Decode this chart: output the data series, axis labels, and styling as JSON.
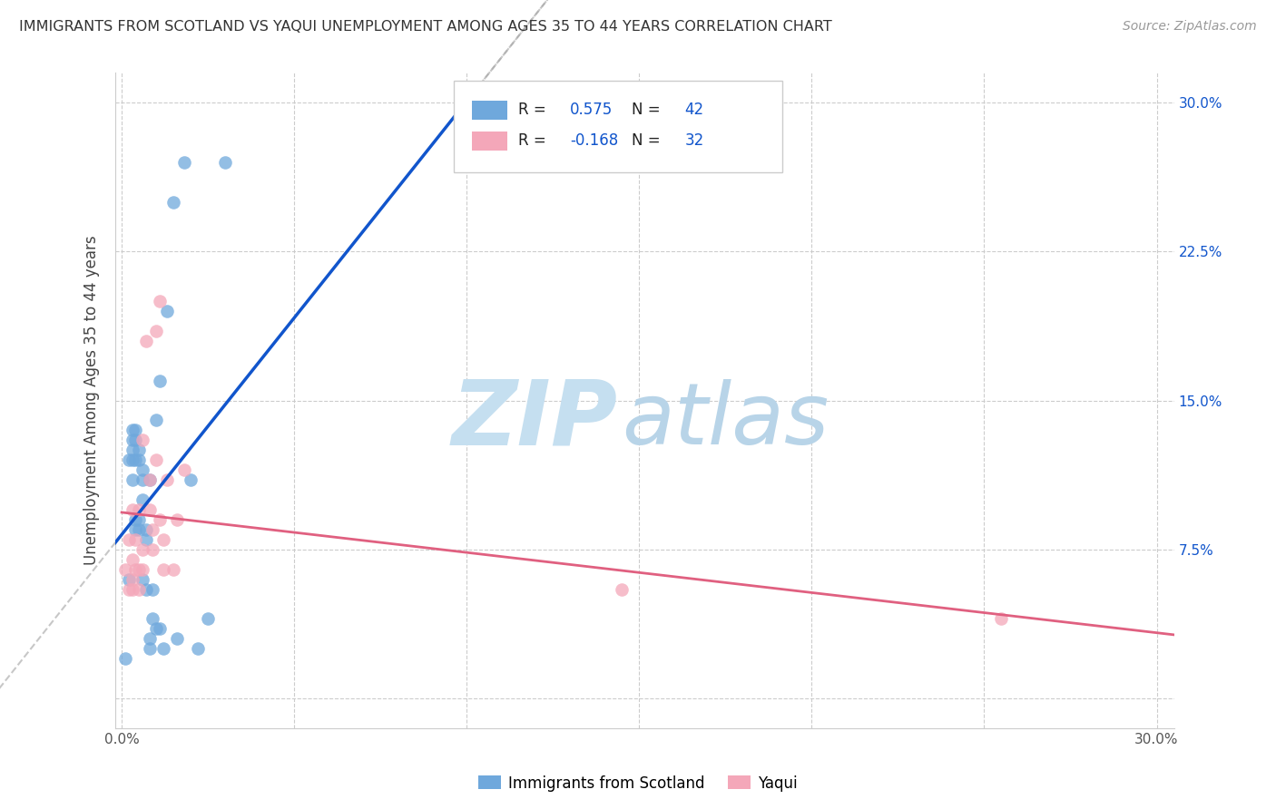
{
  "title": "IMMIGRANTS FROM SCOTLAND VS YAQUI UNEMPLOYMENT AMONG AGES 35 TO 44 YEARS CORRELATION CHART",
  "source": "Source: ZipAtlas.com",
  "ylabel": "Unemployment Among Ages 35 to 44 years",
  "xlim": [
    -0.002,
    0.305
  ],
  "ylim": [
    -0.015,
    0.315
  ],
  "yticks_right": [
    0.0,
    0.075,
    0.15,
    0.225,
    0.3
  ],
  "ytick_labels_right": [
    "",
    "7.5%",
    "15.0%",
    "22.5%",
    "30.0%"
  ],
  "xticks": [
    0.0,
    0.05,
    0.1,
    0.15,
    0.2,
    0.25,
    0.3
  ],
  "scotland_color": "#6fa8dc",
  "yaqui_color": "#f4a7b9",
  "trend_scotland_color": "#1155cc",
  "trend_yaqui_color": "#e06080",
  "watermark_color_zip": "#c5dff0",
  "watermark_color_atlas": "#b8d4e8",
  "scotland_x": [
    0.001,
    0.002,
    0.002,
    0.003,
    0.003,
    0.003,
    0.003,
    0.003,
    0.004,
    0.004,
    0.004,
    0.004,
    0.004,
    0.005,
    0.005,
    0.005,
    0.005,
    0.006,
    0.006,
    0.006,
    0.006,
    0.007,
    0.007,
    0.007,
    0.008,
    0.008,
    0.008,
    0.009,
    0.009,
    0.01,
    0.01,
    0.011,
    0.011,
    0.012,
    0.013,
    0.015,
    0.016,
    0.018,
    0.02,
    0.022,
    0.025,
    0.03
  ],
  "scotland_y": [
    0.02,
    0.06,
    0.12,
    0.11,
    0.12,
    0.125,
    0.13,
    0.135,
    0.085,
    0.09,
    0.12,
    0.13,
    0.135,
    0.085,
    0.09,
    0.12,
    0.125,
    0.06,
    0.1,
    0.11,
    0.115,
    0.055,
    0.08,
    0.085,
    0.025,
    0.03,
    0.11,
    0.04,
    0.055,
    0.035,
    0.14,
    0.16,
    0.035,
    0.025,
    0.195,
    0.25,
    0.03,
    0.27,
    0.11,
    0.025,
    0.04,
    0.27
  ],
  "yaqui_x": [
    0.001,
    0.002,
    0.002,
    0.003,
    0.003,
    0.003,
    0.003,
    0.004,
    0.004,
    0.005,
    0.005,
    0.005,
    0.006,
    0.006,
    0.006,
    0.007,
    0.008,
    0.008,
    0.009,
    0.009,
    0.01,
    0.01,
    0.011,
    0.011,
    0.012,
    0.012,
    0.013,
    0.015,
    0.016,
    0.018,
    0.145,
    0.255
  ],
  "yaqui_y": [
    0.065,
    0.055,
    0.08,
    0.055,
    0.06,
    0.07,
    0.095,
    0.065,
    0.08,
    0.055,
    0.065,
    0.095,
    0.065,
    0.075,
    0.13,
    0.18,
    0.095,
    0.11,
    0.075,
    0.085,
    0.12,
    0.185,
    0.09,
    0.2,
    0.065,
    0.08,
    0.11,
    0.065,
    0.09,
    0.115,
    0.055,
    0.04
  ],
  "figsize": [
    14.06,
    8.92
  ],
  "dpi": 100
}
